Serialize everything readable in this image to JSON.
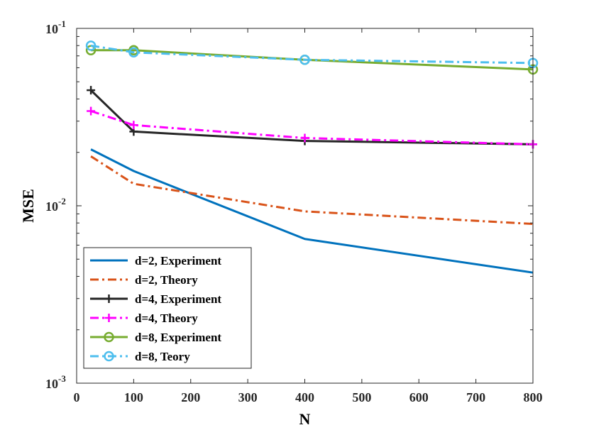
{
  "chart_data": {
    "type": "line",
    "title": "",
    "xlabel": "N",
    "ylabel": "MSE",
    "yscale": "log",
    "xlim": [
      0,
      800
    ],
    "ylim": [
      0.001,
      0.1
    ],
    "xticks": [
      0,
      100,
      200,
      300,
      400,
      500,
      600,
      700,
      800
    ],
    "xtick_labels": [
      "0",
      "100",
      "200",
      "300",
      "400",
      "500",
      "600",
      "700",
      "800"
    ],
    "yticks": [
      0.001,
      0.01,
      0.1
    ],
    "ytick_labels": [
      {
        "base": "10",
        "exp": "-3"
      },
      {
        "base": "10",
        "exp": "-2"
      },
      {
        "base": "10",
        "exp": "-1"
      }
    ],
    "legend_position": "bottom-left",
    "series": [
      {
        "name": "d=2, Experiment",
        "color": "#0072BD",
        "dash": "solid",
        "marker": "none",
        "x": [
          25,
          100,
          400,
          800
        ],
        "y": [
          0.0208,
          0.0157,
          0.0065,
          0.0042
        ]
      },
      {
        "name": "d=2, Theory",
        "color": "#D95319",
        "dash": "dashdot",
        "marker": "none",
        "x": [
          25,
          100,
          400,
          800
        ],
        "y": [
          0.019,
          0.0133,
          0.0093,
          0.0079
        ]
      },
      {
        "name": "d=4, Experiment",
        "color": "#262626",
        "dash": "solid",
        "marker": "plus",
        "x": [
          25,
          100,
          400,
          800
        ],
        "y": [
          0.0448,
          0.0262,
          0.0232,
          0.0222
        ]
      },
      {
        "name": "d=4, Theory",
        "color": "#FF00FF",
        "dash": "dashdot",
        "marker": "plus",
        "x": [
          25,
          100,
          400,
          800
        ],
        "y": [
          0.0342,
          0.0285,
          0.0241,
          0.0222
        ]
      },
      {
        "name": "d=8, Experiment",
        "color": "#77AC30",
        "dash": "solid",
        "marker": "circle",
        "x": [
          25,
          100,
          400,
          800
        ],
        "y": [
          0.0753,
          0.0753,
          0.0665,
          0.0587
        ]
      },
      {
        "name": "d=8, Teory",
        "color": "#4DBEEE",
        "dash": "dashdot",
        "marker": "circle",
        "x": [
          25,
          100,
          400,
          800
        ],
        "y": [
          0.0799,
          0.0733,
          0.0665,
          0.0638
        ]
      }
    ]
  }
}
